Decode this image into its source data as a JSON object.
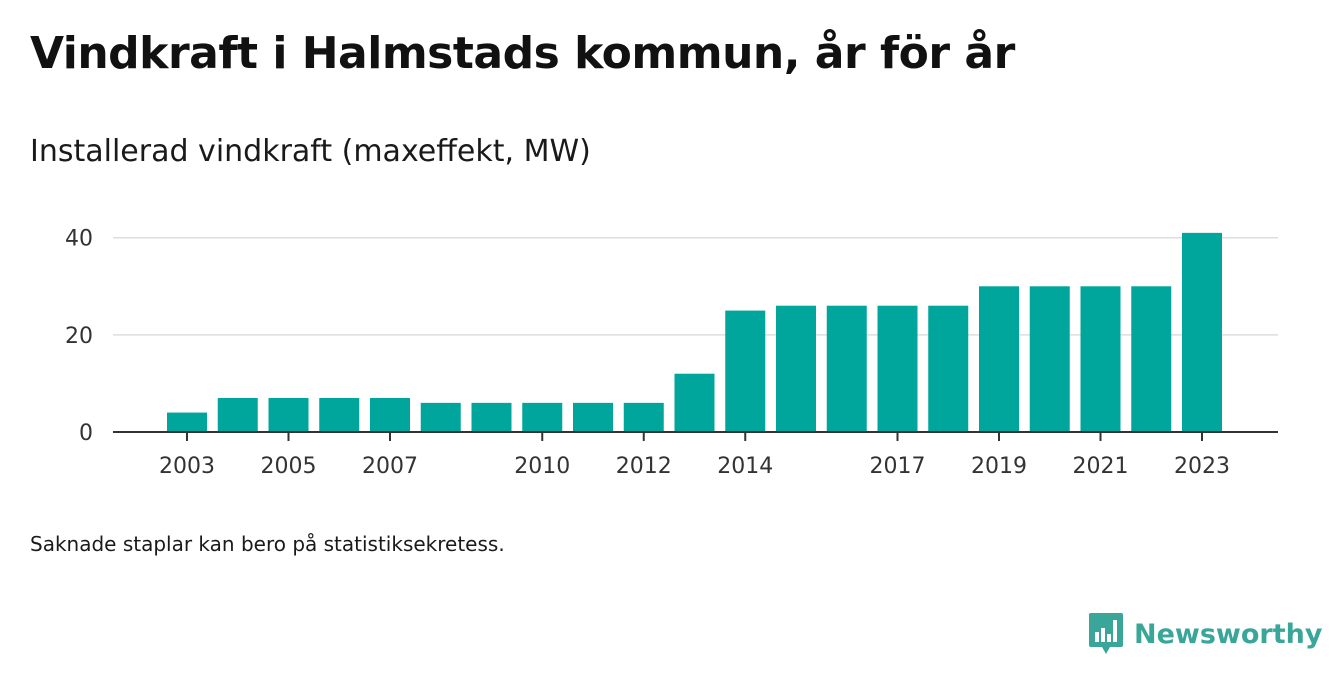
{
  "title": "Vindkraft i Halmstads kommun, år för år",
  "subtitle": "Installerad vindkraft (maxeffekt, MW)",
  "footnote": "Saknade staplar kan bero på statistiksekretess.",
  "brand": {
    "name": "Newsworthy",
    "icon": "newsworthy-logo-icon",
    "color": "#3aa69a"
  },
  "colors": {
    "bar": "#00a69c",
    "grid": "#dddddd",
    "axis": "#333333"
  },
  "chart_data": {
    "type": "bar",
    "x": [
      2003,
      2004,
      2005,
      2006,
      2007,
      2008,
      2009,
      2010,
      2011,
      2012,
      2013,
      2014,
      2015,
      2016,
      2017,
      2018,
      2019,
      2020,
      2021,
      2022,
      2023
    ],
    "values": [
      4,
      7,
      7,
      7,
      7,
      6,
      6,
      6,
      6,
      6,
      12,
      25,
      26,
      26,
      26,
      26,
      30,
      30,
      30,
      30,
      41
    ],
    "xticks": [
      "2003",
      "2005",
      "2007",
      "2010",
      "2012",
      "2014",
      "2017",
      "2019",
      "2021",
      "2023"
    ],
    "yticks": [
      0,
      20,
      40
    ],
    "ylim": [
      0,
      42
    ],
    "grid": true
  }
}
